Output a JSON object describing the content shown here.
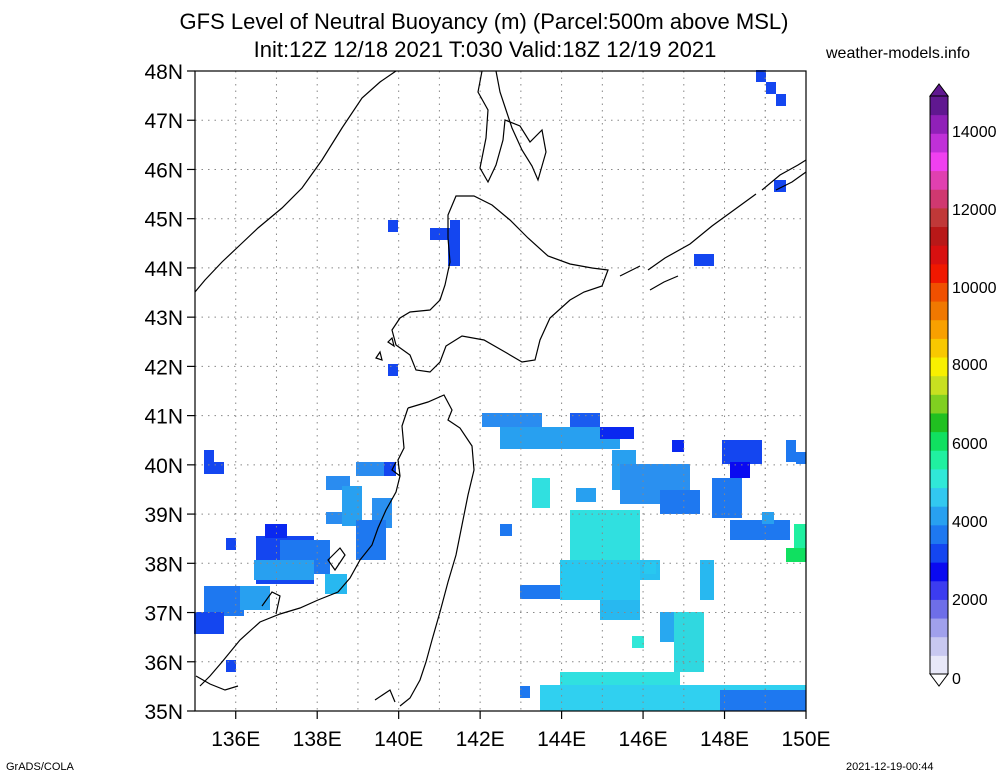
{
  "title_line1": "GFS Level of Neutral Buoyancy (m) (Parcel:500m above MSL)",
  "title_line2": "Init:12Z 12/18 2021 T:030 Valid:18Z 12/19 2021",
  "site": "weather-models.info",
  "footer_left": "GrADS/COLA",
  "footer_right": "2021-12-19-00:44",
  "map": {
    "lat_labels": [
      "48N",
      "47N",
      "46N",
      "45N",
      "44N",
      "43N",
      "42N",
      "41N",
      "40N",
      "39N",
      "38N",
      "37N",
      "36N",
      "35N"
    ],
    "lon_labels": [
      "136E",
      "138E",
      "140E",
      "142E",
      "144E",
      "146E",
      "148E",
      "150E"
    ],
    "lon_range": [
      135,
      150
    ],
    "lat_range": [
      35,
      48
    ],
    "grid": true
  },
  "colorbar": {
    "labels": [
      "14000",
      "12000",
      "10000",
      "8000",
      "6000",
      "4000",
      "2000",
      "0"
    ],
    "colors": [
      "#e8e8f8",
      "#c8c8f0",
      "#a0a0ec",
      "#6e6ee8",
      "#3c3cf0",
      "#0a0af0",
      "#1446f0",
      "#1e78f0",
      "#28a0f0",
      "#32c8f0",
      "#30e8d8",
      "#20f0a0",
      "#10e060",
      "#20c020",
      "#80d020",
      "#c8e020",
      "#f8f000",
      "#f8c800",
      "#f8a000",
      "#f07800",
      "#f05000",
      "#f01800",
      "#d81010",
      "#b81818",
      "#c03838",
      "#d03870",
      "#e040b0",
      "#f040f0",
      "#c030d8",
      "#9020b8",
      "#601890"
    ]
  }
}
